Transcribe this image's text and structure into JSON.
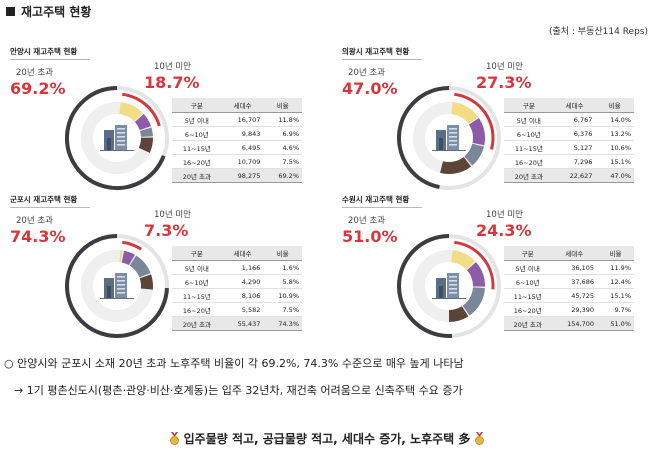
{
  "page": {
    "title": "재고주택 현황",
    "source": "(출처 : 부동산114 Reps)",
    "notes": [
      "○ 안양시와 군포시 소재 20년 초과 노후주택 비율이 각 69.2%, 74.3% 수준으로 매우 높게 나타남",
      "→ 1기 평촌신도시(평촌·관양·비산·호계동)는 입주 32년차, 재건축 어려움으로 신축주택 수요 증가"
    ],
    "conclusion": "입주물량 적고, 공급물량 적고, 세대수 증가, 노후주택 多"
  },
  "colors": {
    "accent_red": "#d7363c",
    "ring_dark": "#3c3c42",
    "seg_1": "#f2dc84",
    "seg_2": "#8e5ba8",
    "seg_3": "#7a879a",
    "seg_4": "#5c4438",
    "seg_5": "#3c3c42"
  },
  "table_headers": [
    "구분",
    "세대수",
    "비율"
  ],
  "label_old": "20년 초과",
  "label_new": "10년 미만",
  "chart_data": [
    {
      "type": "pie",
      "title": "안양시 재고주택 현황",
      "categories": [
        "5년 이내",
        "6~10년",
        "11~15년",
        "16~20년",
        "20년 초과"
      ],
      "values": [
        16707,
        9843,
        6495,
        10709,
        98275
      ],
      "shares": [
        "11.8%",
        "6.9%",
        "4.6%",
        "7.5%",
        "69.2%"
      ],
      "values_display": [
        "16,707",
        "9,843",
        "6,495",
        "10,709",
        "98,275"
      ],
      "pct_old": "69.2%",
      "pct_new": "18.7%"
    },
    {
      "type": "pie",
      "title": "의왕시 재고주택 현황",
      "categories": [
        "5년 이내",
        "6~10년",
        "11~15년",
        "16~20년",
        "20년 초과"
      ],
      "values": [
        6767,
        6376,
        5127,
        7296,
        22627
      ],
      "shares": [
        "14.0%",
        "13.2%",
        "10.6%",
        "15.1%",
        "47.0%"
      ],
      "values_display": [
        "6,767",
        "6,376",
        "5,127",
        "7,296",
        "22,627"
      ],
      "pct_old": "47.0%",
      "pct_new": "27.3%"
    },
    {
      "type": "pie",
      "title": "군포시 재고주택 현황",
      "categories": [
        "5년 이내",
        "6~10년",
        "11~15년",
        "16~20년",
        "20년 초과"
      ],
      "values": [
        1166,
        4290,
        8106,
        5582,
        55437
      ],
      "shares": [
        "1.6%",
        "5.8%",
        "10.9%",
        "7.5%",
        "74.3%"
      ],
      "values_display": [
        "1,166",
        "4,290",
        "8,106",
        "5,582",
        "55,437"
      ],
      "pct_old": "74.3%",
      "pct_new": "7.3%"
    },
    {
      "type": "pie",
      "title": "수원시 재고주택 현황",
      "categories": [
        "5년 이내",
        "6~10년",
        "11~15년",
        "16~20년",
        "20년 초과"
      ],
      "values": [
        36105,
        37686,
        45725,
        29390,
        154700
      ],
      "shares": [
        "11.9%",
        "12.4%",
        "15.1%",
        "9.7%",
        "51.0%"
      ],
      "values_display": [
        "36,105",
        "37,686",
        "45,725",
        "29,390",
        "154,700"
      ],
      "pct_old": "51.0%",
      "pct_new": "24.3%"
    }
  ]
}
